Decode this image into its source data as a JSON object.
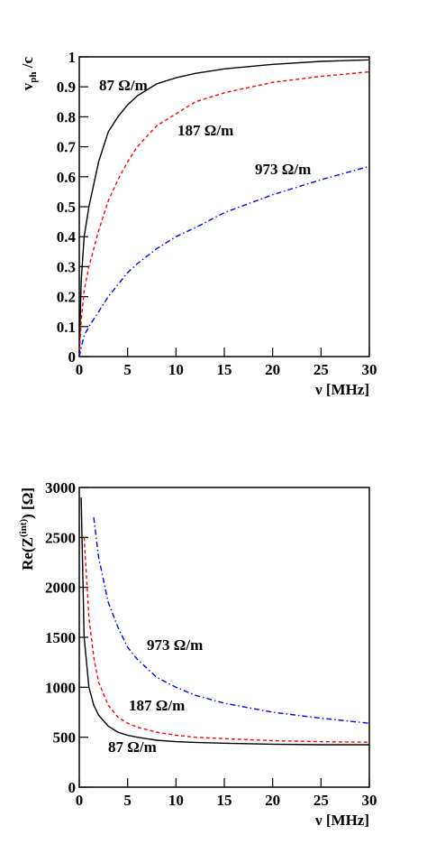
{
  "chart_data": [
    {
      "type": "line",
      "ylabel": [
        "v",
        "ph",
        " /c"
      ],
      "xlabel": "ν [MHz]",
      "x": [
        0,
        0.2,
        0.5,
        1,
        2,
        3,
        4,
        5,
        6,
        8,
        10,
        12,
        15,
        20,
        25,
        30
      ],
      "series": [
        {
          "name": "87 Ω/m",
          "color": "#000000",
          "dash": "solid",
          "values": [
            0,
            0.25,
            0.4,
            0.5,
            0.65,
            0.75,
            0.8,
            0.84,
            0.87,
            0.91,
            0.93,
            0.945,
            0.96,
            0.975,
            0.985,
            0.99
          ]
        },
        {
          "name": "187 Ω/m",
          "color": "#ff0000",
          "dash": "dashed",
          "values": [
            0,
            0.12,
            0.22,
            0.3,
            0.42,
            0.52,
            0.59,
            0.65,
            0.7,
            0.77,
            0.81,
            0.85,
            0.88,
            0.915,
            0.935,
            0.95
          ]
        },
        {
          "name": "973 Ω/m",
          "color": "#0000ff",
          "dash": "dashdot",
          "values": [
            0,
            0.03,
            0.07,
            0.1,
            0.15,
            0.2,
            0.24,
            0.28,
            0.31,
            0.36,
            0.4,
            0.43,
            0.48,
            0.54,
            0.59,
            0.635
          ]
        }
      ],
      "xlim": [
        0,
        30
      ],
      "xticks": [
        0,
        5,
        10,
        15,
        20,
        25,
        30
      ],
      "ylim": [
        0,
        1
      ],
      "yticks": [
        0,
        0.1,
        0.2,
        0.3,
        0.4,
        0.5,
        0.6,
        0.7,
        0.8,
        0.9,
        1
      ]
    },
    {
      "type": "line",
      "ylabel": [
        "Re(Z",
        "(int)",
        ") [Ω]"
      ],
      "xlabel": "ν [MHz]",
      "x": [
        0.2,
        0.5,
        1,
        1.5,
        2,
        3,
        4,
        5,
        6,
        8,
        10,
        12,
        15,
        20,
        25,
        30
      ],
      "series": [
        {
          "name": "973 Ω/m",
          "color": "#0000ff",
          "dash": "dashdot",
          "values": [
            null,
            null,
            null,
            2700,
            2300,
            1850,
            1600,
            1400,
            1280,
            1100,
            1000,
            920,
            840,
            750,
            690,
            640
          ]
        },
        {
          "name": "187 Ω/m",
          "color": "#ff0000",
          "dash": "dashed",
          "values": [
            null,
            2500,
            1700,
            1300,
            1050,
            820,
            700,
            640,
            600,
            550,
            520,
            500,
            485,
            465,
            455,
            450
          ]
        },
        {
          "name": "87 Ω/m",
          "color": "#000000",
          "dash": "solid",
          "values": [
            2900,
            1500,
            1000,
            820,
            720,
            610,
            550,
            520,
            500,
            470,
            455,
            448,
            440,
            430,
            425,
            425
          ]
        }
      ],
      "xlim": [
        0,
        30
      ],
      "xticks": [
        0,
        5,
        10,
        15,
        20,
        25,
        30
      ],
      "ylim": [
        0,
        3000
      ],
      "yticks": [
        0,
        500,
        1000,
        1500,
        2000,
        2500,
        3000
      ]
    }
  ]
}
